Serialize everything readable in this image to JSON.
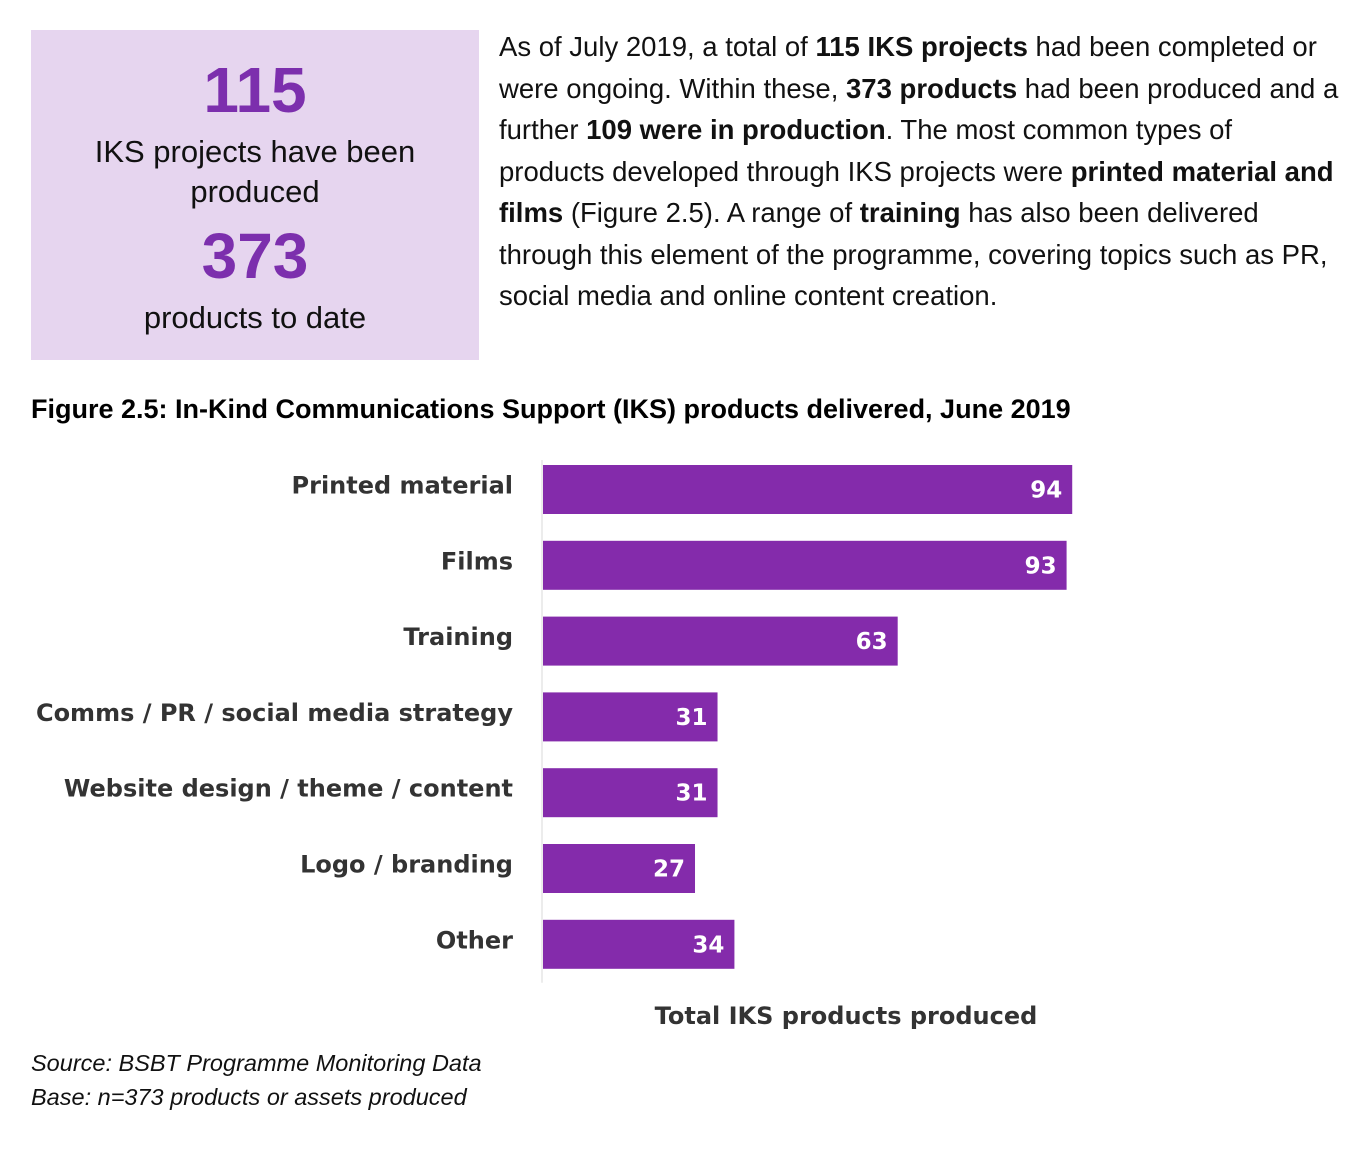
{
  "stats": [
    {
      "number": "115",
      "label": "IKS projects have been produced"
    },
    {
      "number": "373",
      "label": "products to date"
    }
  ],
  "intro": {
    "p1": "As of July 2019, a total of ",
    "b1": "115 IKS projects",
    "p2": " had been completed or were ongoing. Within these, ",
    "b2": "373 products",
    "p3": " had been produced and a further ",
    "b3": "109 were in production",
    "p4": ". The most common types of products developed through IKS projects were ",
    "b4": "printed material and films",
    "p5": " (Figure 2.5). A range of ",
    "b5": "training",
    "p6": " has also been delivered through this element of the programme, covering topics such as PR, social media and online content creation."
  },
  "figure_title": "Figure 2.5: In-Kind Communications Support (IKS) products delivered, June 2019",
  "chart_data": {
    "type": "bar",
    "orientation": "horizontal",
    "categories": [
      "Printed material",
      "Films",
      "Training",
      "Comms / PR / social media strategy",
      "Website design / theme / content",
      "Logo / branding",
      "Other"
    ],
    "values": [
      94,
      93,
      63,
      31,
      31,
      27,
      34
    ],
    "xlabel": "Total IKS products produced",
    "ylabel": "",
    "xlim": [
      0,
      100
    ],
    "bar_color": "#842bab",
    "label_color": "#ffffff",
    "grid": false,
    "legend": "none"
  },
  "notes": {
    "source": "Source: BSBT Programme Monitoring Data",
    "base": "Base: n=373 products or assets produced"
  }
}
